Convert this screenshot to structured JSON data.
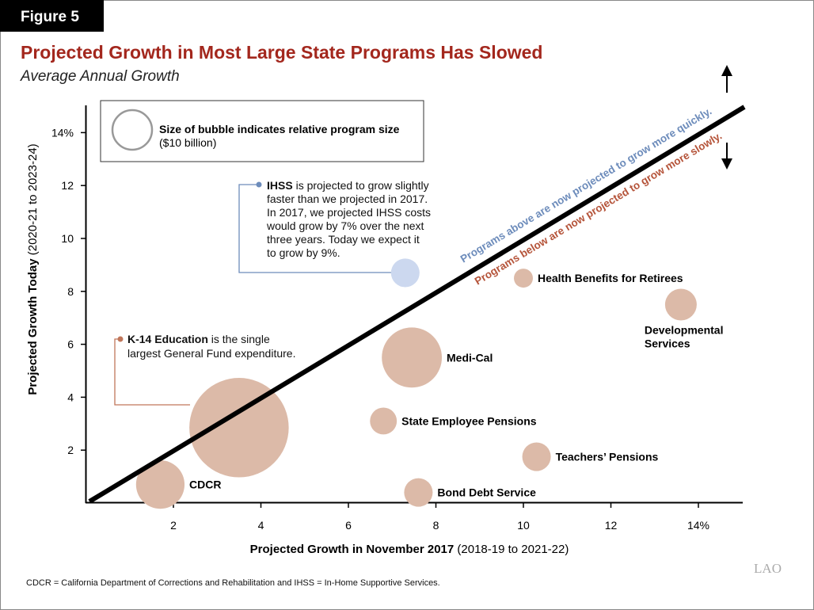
{
  "figure_label": "Figure 5",
  "title": "Projected Growth in Most Large State Programs Has Slowed",
  "subtitle": "Average Annual Growth",
  "legend": {
    "bold": "Size of bubble indicates relative program size",
    "sub": "($10 billion)",
    "reference_size_billion": 10
  },
  "line_labels": {
    "above": "Programs above are now projected to grow more quickly.",
    "below": "Programs below are now projected to grow more slowly."
  },
  "annotations": {
    "ihss": {
      "bold": "IHSS",
      "lines": [
        " is projected to grow slightly",
        "faster than we projected in 2017.",
        "In 2017, we projected IHSS costs",
        "would grow by 7% over the next",
        "three years. Today we expect it",
        "to grow by 9%."
      ]
    },
    "k14": {
      "bold": "K-14 Education",
      "lines": [
        " is the single",
        "largest General Fund expenditure."
      ]
    }
  },
  "footnote": "CDCR = California Department of Corrections and Rehabilitation and IHSS = In-Home Supportive Services.",
  "logo": "LAO",
  "colors": {
    "title": "#a3271d",
    "bubble": "#dcbaa8",
    "ihss_bubble": "#ccd8ef",
    "above_text": "#6d8cbb",
    "below_text": "#b5543a",
    "legend_circle": "#999999"
  },
  "chart_data": {
    "type": "scatter",
    "xlabel": {
      "bold": "Projected Growth in November 2017",
      "rest": " (2018-19 to 2021-22)"
    },
    "ylabel": {
      "bold": "Projected Growth Today",
      "rest": " (2020-21 to 2023-24)"
    },
    "xlim": [
      0,
      15
    ],
    "ylim": [
      0,
      15
    ],
    "x_ticks": [
      {
        "v": 2,
        "label": "2"
      },
      {
        "v": 4,
        "label": "4"
      },
      {
        "v": 6,
        "label": "6"
      },
      {
        "v": 8,
        "label": "8"
      },
      {
        "v": 10,
        "label": "10"
      },
      {
        "v": 12,
        "label": "12"
      },
      {
        "v": 14,
        "label": "14%"
      }
    ],
    "y_ticks": [
      {
        "v": 2,
        "label": "2"
      },
      {
        "v": 4,
        "label": "4"
      },
      {
        "v": 6,
        "label": "6"
      },
      {
        "v": 8,
        "label": "8"
      },
      {
        "v": 10,
        "label": "10"
      },
      {
        "v": 12,
        "label": "12"
      },
      {
        "v": 14,
        "label": "14%"
      }
    ],
    "reference_line": "y = x",
    "grid": false,
    "points": [
      {
        "name": "CDCR",
        "x": 1.7,
        "y": 0.7,
        "size_billion": 15,
        "label": [
          "CDCR"
        ]
      },
      {
        "name": "K-14 Education",
        "x": 3.5,
        "y": 2.85,
        "size_billion": 63,
        "label": []
      },
      {
        "name": "State Employee Pensions",
        "x": 6.8,
        "y": 3.1,
        "size_billion": 4.6,
        "label": [
          "State Employee Pensions"
        ]
      },
      {
        "name": "Medi-Cal",
        "x": 7.45,
        "y": 5.5,
        "size_billion": 23,
        "label": [
          "Medi-Cal"
        ]
      },
      {
        "name": "IHSS",
        "x": 7.3,
        "y": 8.7,
        "size_billion": 5.2,
        "label": [],
        "highlight": true
      },
      {
        "name": "Health Benefits for Retirees",
        "x": 10.0,
        "y": 8.5,
        "size_billion": 2.3,
        "label": [
          "Health Benefits for Retirees"
        ]
      },
      {
        "name": "Developmental Services",
        "x": 13.6,
        "y": 7.5,
        "size_billion": 6.4,
        "label": [
          "Developmental",
          "Services"
        ]
      },
      {
        "name": "Teachers' Pensions",
        "x": 10.3,
        "y": 1.75,
        "size_billion": 5.2,
        "label": [
          "Teachers’ Pensions"
        ]
      },
      {
        "name": "Bond Debt Service",
        "x": 7.6,
        "y": 0.4,
        "size_billion": 5.2,
        "label": [
          "Bond Debt Service"
        ]
      }
    ]
  }
}
